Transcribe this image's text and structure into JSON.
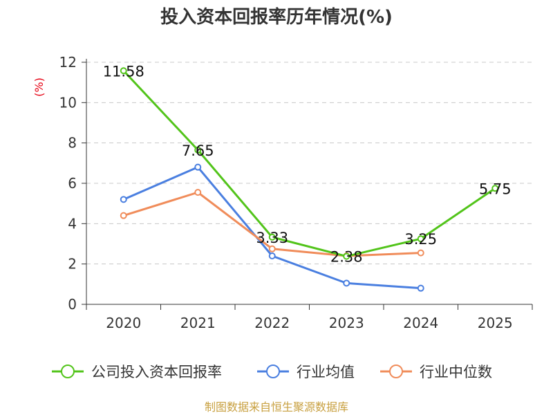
{
  "chart_data": {
    "type": "line",
    "title": "投入资本回报率历年情况(%)",
    "ylabel": "(%)",
    "xlabel": "",
    "categories": [
      "2020",
      "2021",
      "2022",
      "2023",
      "2024",
      "2025"
    ],
    "ylim": [
      0,
      12
    ],
    "yticks": [
      0,
      2,
      4,
      6,
      8,
      10,
      12
    ],
    "grid": true,
    "legend_position": "bottom",
    "series": [
      {
        "name": "公司投入资本回报率",
        "color": "#52c41a",
        "values": [
          11.58,
          7.65,
          3.33,
          2.38,
          3.25,
          5.75
        ],
        "labels": [
          "11.58",
          "7.65",
          "3.33",
          "2.38",
          "3.25",
          "5.75"
        ]
      },
      {
        "name": "行业均值",
        "color": "#4a7fe0",
        "values": [
          5.2,
          6.8,
          2.4,
          1.05,
          0.8,
          null
        ]
      },
      {
        "name": "行业中位数",
        "color": "#f08c5a",
        "values": [
          4.4,
          5.55,
          2.75,
          2.4,
          2.55,
          null
        ]
      }
    ],
    "source": "制图数据来自恒生聚源数据库"
  }
}
